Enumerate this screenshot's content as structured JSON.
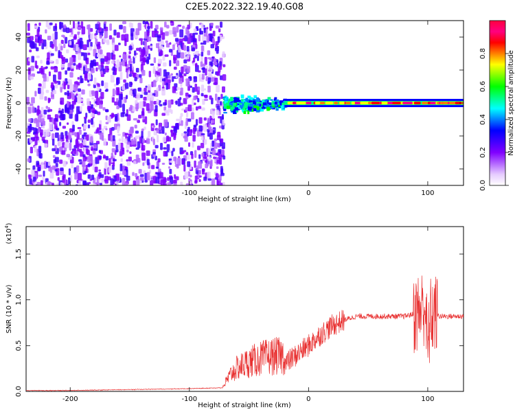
{
  "title": "C2E5.2022.322.19.40.G08",
  "chart_data": [
    {
      "type": "heatmap",
      "xlabel": "Height of straight line (km)",
      "ylabel": "Frequency (Hz)",
      "xlim": [
        -237,
        130
      ],
      "ylim": [
        -50,
        50
      ],
      "xticks": [
        -200,
        -100,
        0,
        100
      ],
      "yticks": [
        -40,
        -20,
        0,
        20,
        40
      ],
      "colorbar": {
        "label": "Normalized spectral amplitude",
        "range": [
          0,
          1
        ],
        "ticks": [
          "0.0",
          "0.2",
          "0.4",
          "0.6",
          "0.8"
        ],
        "colors": [
          "#ffffff",
          "#e6ccff",
          "#b366ff",
          "#8000ff",
          "#4000ff",
          "#0000ff",
          "#0080ff",
          "#00ffff",
          "#00ff80",
          "#00ff00",
          "#80ff00",
          "#ffff00",
          "#ff8000",
          "#ff0000",
          "#ff0080",
          "#ff0040"
        ]
      },
      "noise_region": {
        "x": [
          -237,
          -72
        ],
        "y": [
          -50,
          50
        ],
        "amplitude": [
          0.05,
          0.3
        ]
      },
      "transition_region": {
        "x": [
          -72,
          -20
        ],
        "frequency_spread_hz": [
          -8,
          8
        ],
        "amplitude": [
          0.3,
          0.6
        ]
      },
      "carrier": {
        "x": [
          -20,
          130
        ],
        "frequency_hz": 0,
        "amplitude": [
          0.7,
          1.0
        ]
      }
    },
    {
      "type": "line",
      "xlabel": "Height of straight line (km)",
      "ylabel": "SNR (10 * v/v)",
      "yscale_label": "(x10",
      "yscale_exp": "4",
      "yscale_close": ")",
      "xlim": [
        -237,
        130
      ],
      "ylim": [
        0,
        1.8
      ],
      "xticks": [
        -200,
        -100,
        0,
        100
      ],
      "yticks": [
        "0.0",
        "0.5",
        "1.0",
        "1.5"
      ],
      "color": "#e83030",
      "series": [
        {
          "x": [
            -237,
            -200,
            -150,
            -100,
            -72,
            -65,
            -60,
            -50,
            -40,
            -30,
            -20,
            -10,
            0,
            10,
            20,
            30,
            40,
            50,
            60,
            70,
            80,
            90,
            95,
            98,
            100,
            102,
            105,
            110,
            120,
            130
          ],
          "y": [
            0.01,
            0.01,
            0.02,
            0.03,
            0.04,
            0.15,
            0.2,
            0.25,
            0.28,
            0.3,
            0.3,
            0.4,
            0.5,
            0.62,
            0.72,
            0.78,
            0.82,
            0.82,
            0.82,
            0.82,
            0.82,
            0.85,
            0.9,
            0.95,
            0.4,
            0.8,
            0.85,
            0.82,
            0.82,
            0.82
          ]
        }
      ]
    }
  ]
}
